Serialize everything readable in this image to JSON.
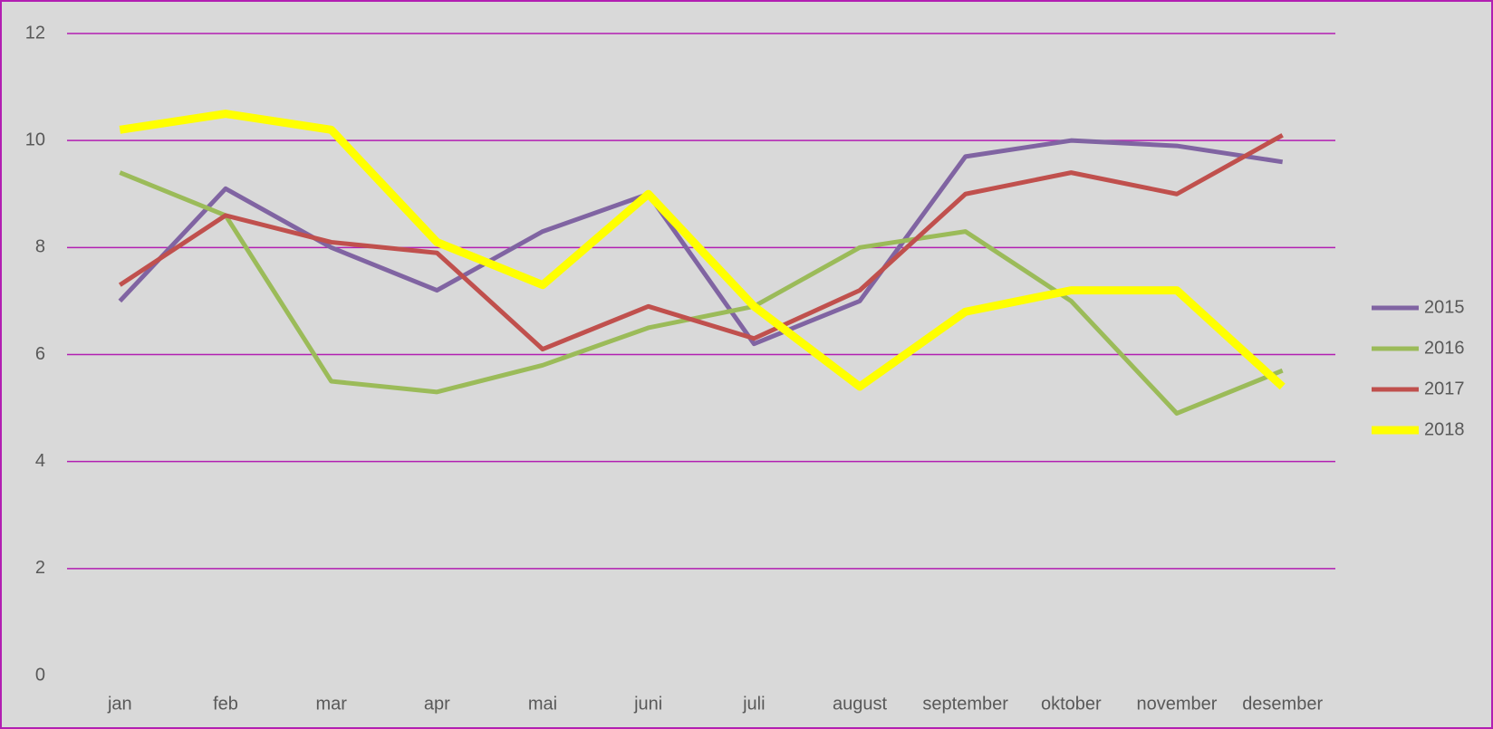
{
  "chart_data": {
    "type": "line",
    "categories": [
      "jan",
      "feb",
      "mar",
      "apr",
      "mai",
      "juni",
      "juli",
      "august",
      "september",
      "oktober",
      "november",
      "desember"
    ],
    "series": [
      {
        "name": "2015",
        "color": "#8064a2",
        "width": 5,
        "values": [
          7.0,
          9.1,
          8.0,
          7.2,
          8.3,
          9.0,
          6.2,
          7.0,
          9.7,
          10.0,
          9.9,
          9.6
        ]
      },
      {
        "name": "2016",
        "color": "#9bbb59",
        "width": 5,
        "values": [
          9.4,
          8.6,
          5.5,
          5.3,
          5.8,
          6.5,
          6.9,
          8.0,
          8.3,
          7.0,
          4.9,
          5.7
        ]
      },
      {
        "name": "2017",
        "color": "#c0504d",
        "width": 5,
        "values": [
          7.3,
          8.6,
          8.1,
          7.9,
          6.1,
          6.9,
          6.3,
          7.2,
          9.0,
          9.4,
          9.0,
          10.1
        ]
      },
      {
        "name": "2018",
        "color": "#ffff00",
        "width": 9,
        "values": [
          10.2,
          10.5,
          10.2,
          8.1,
          7.3,
          9.0,
          6.9,
          5.4,
          6.8,
          7.2,
          7.2,
          5.4
        ]
      }
    ],
    "ylim": [
      0,
      12
    ],
    "yticks": [
      0,
      2,
      4,
      6,
      8,
      10,
      12
    ],
    "grid": true,
    "grid_color": "#b21fb2",
    "legend": "right"
  }
}
